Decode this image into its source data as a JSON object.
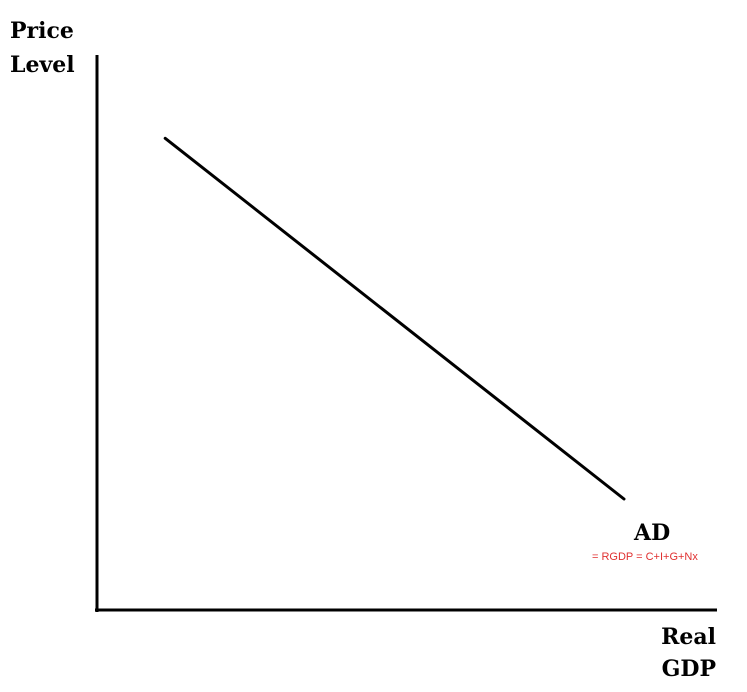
{
  "chart_data": {
    "type": "line",
    "title": "",
    "ylabel_lines": [
      "Price",
      "Level"
    ],
    "xlabel_lines": [
      "Real",
      "GDP"
    ],
    "xlim": [
      0,
      100
    ],
    "ylim": [
      0,
      100
    ],
    "grid": false,
    "tick_labels": false,
    "series": [
      {
        "name": "AD",
        "color": "#000000",
        "points": [
          {
            "x": 11,
            "y": 85
          },
          {
            "x": 85,
            "y": 20
          }
        ]
      }
    ],
    "annotations": [
      {
        "text": "= RGDP = C+I+G+Nx",
        "color": "#e03030",
        "attached_to": "AD"
      }
    ]
  }
}
